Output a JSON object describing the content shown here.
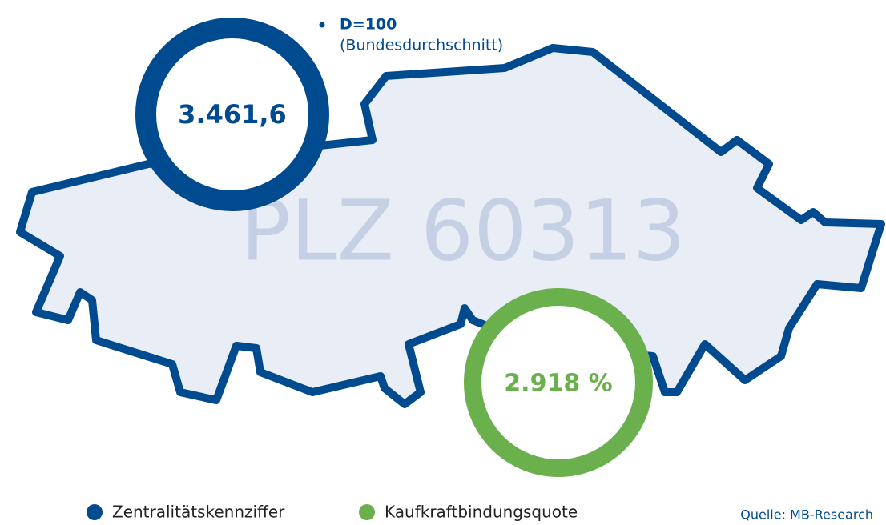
{
  "region": {
    "label": "PLZ 60313"
  },
  "indicators": [
    {
      "name": "Zentralitätskennziffer",
      "value": "3.461,6"
    },
    {
      "name": "Kaufkraftbindungsquote",
      "value": "2.918 %"
    }
  ],
  "note": {
    "title": "D=100",
    "subtitle": "(Bundesdurchschnitt)"
  },
  "source": "Quelle: MB-Research"
}
